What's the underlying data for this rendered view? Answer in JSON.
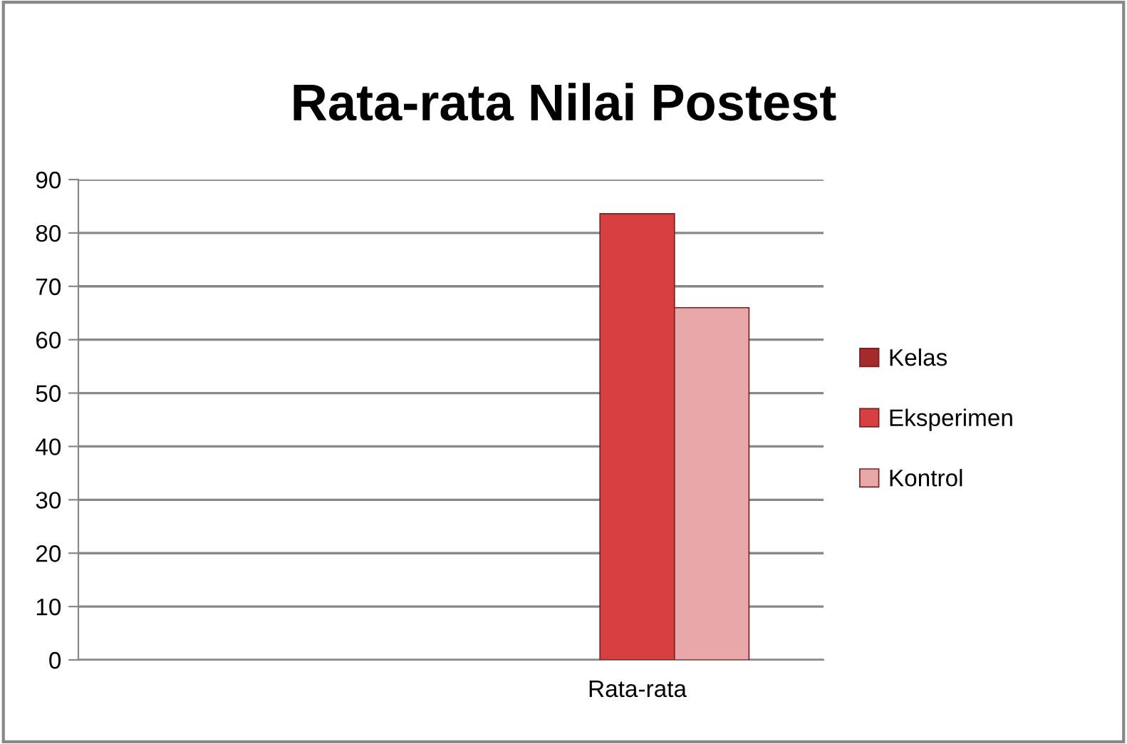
{
  "chart_data": {
    "type": "bar",
    "title": "Rata-rata Nilai Postest",
    "categories": [
      null,
      "Rata-rata"
    ],
    "series": [
      {
        "name": "Kelas",
        "color": "#a52a2a",
        "values": [
          null,
          null
        ]
      },
      {
        "name": "Eksperimen",
        "color": "#d64040",
        "values": [
          null,
          83.6
        ]
      },
      {
        "name": "Kontrol",
        "color": "#e8a8aa",
        "values": [
          null,
          66
        ]
      }
    ],
    "ylim": [
      0,
      90
    ],
    "yticks": [
      0,
      10,
      20,
      30,
      40,
      50,
      60,
      70,
      80,
      90
    ],
    "grid": "y",
    "legend": "right"
  }
}
